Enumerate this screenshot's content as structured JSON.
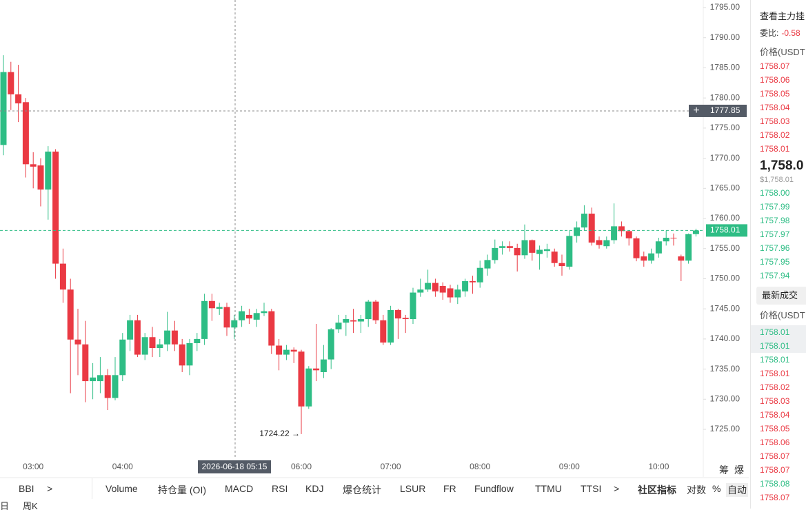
{
  "chart_data": {
    "type": "candlestick",
    "categories": [
      null,
      null,
      null,
      null,
      "03:00",
      null,
      null,
      null,
      null,
      null,
      null,
      null,
      null,
      null,
      null,
      null,
      "04:00",
      null,
      null,
      null,
      null,
      null,
      null,
      null,
      null,
      null,
      null,
      null,
      null,
      null,
      null,
      null,
      null,
      null,
      null,
      null,
      null,
      null,
      null,
      null,
      "06:00",
      null,
      null,
      null,
      null,
      null,
      null,
      null,
      null,
      null,
      null,
      null,
      "07:00",
      null,
      null,
      null,
      null,
      null,
      null,
      null,
      null,
      null,
      null,
      null,
      "08:00",
      null,
      null,
      null,
      null,
      null,
      null,
      null,
      null,
      null,
      null,
      null,
      "09:00",
      null,
      null,
      null,
      null,
      null,
      null,
      null,
      null,
      null,
      null,
      null,
      "10:00",
      null,
      null,
      null,
      null,
      null
    ],
    "open": [
      1772.2,
      1784.3,
      1780.6,
      1779.3,
      1769.0,
      1768.8,
      1764.8,
      1771.1,
      1752.5,
      1748.2,
      1739.9,
      1739.1,
      1733.0,
      1733.0,
      1734.0,
      1730.2,
      1734.0,
      1739.9,
      1743.1,
      1737.4,
      1740.3,
      1738.5,
      1739.1,
      1741.4,
      1739.1,
      1735.6,
      1739.3,
      1740.0,
      1746.3,
      1745.0,
      1745.3,
      1741.9,
      1743.1,
      1744.0,
      1743.2,
      1744.3,
      1744.6,
      1738.9,
      1737.4,
      1738.2,
      1737.9,
      1728.8,
      1735.1,
      1734.5,
      1736.6,
      1741.6,
      1742.7,
      1743.1,
      1742.9,
      1743.3,
      1746.2,
      1743.1,
      1739.4,
      1744.8,
      1743.5,
      1743.3,
      1747.7,
      1748.2,
      1749.3,
      1748.8,
      1748.4,
      1746.9,
      1747.9,
      1749.6,
      1749.4,
      1751.7,
      1753.1,
      1755.1,
      1755.4,
      1755.1,
      1753.9,
      1756.4,
      1754.1,
      1754.6,
      1754.5,
      1752.6,
      1752.0,
      1757.1,
      1758.5,
      1760.8,
      1756.4,
      1755.4,
      1756.4,
      1758.7,
      1757.9,
      1756.7,
      1753.7,
      1753.0,
      1754.2,
      1756.2,
      1756.8,
      1753.7,
      1753.0,
      1757.4
    ],
    "high": [
      1787.1,
      1786,
      1785.5,
      1780,
      1771,
      1770,
      1772,
      1771.5,
      1755,
      1750,
      1745,
      1743,
      1736,
      1737,
      1735,
      1737,
      1741,
      1744,
      1744,
      1741,
      1742,
      1740,
      1744.5,
      1743,
      1740,
      1740,
      1741,
      1747.5,
      1747.5,
      1746,
      1746,
      1744,
      1745.5,
      1745,
      1745,
      1746,
      1745,
      1740,
      1739,
      1738.6,
      1738.2,
      1735.5,
      1742.5,
      1739,
      1741.8,
      1744,
      1744,
      1745,
      1744,
      1746.5,
      1746.5,
      1744,
      1745.5,
      1745,
      1744,
      1748.5,
      1750,
      1751.5,
      1750,
      1749.4,
      1749,
      1749,
      1750,
      1750.5,
      1753,
      1754,
      1756.5,
      1756.2,
      1756.2,
      1755.8,
      1759,
      1756.5,
      1755.5,
      1755.8,
      1755,
      1754,
      1758,
      1759.5,
      1762.2,
      1761.8,
      1757,
      1757,
      1762.5,
      1759.5,
      1758,
      1757,
      1754.5,
      1755,
      1756.8,
      1758,
      1757.5,
      1754,
      1757.5,
      1758.3
    ],
    "low": [
      1770.5,
      1778,
      1776,
      1766.8,
      1765,
      1762,
      1759.8,
      1750,
      1746,
      1731,
      1734,
      1729.5,
      1730,
      1731,
      1728.2,
      1729.8,
      1733,
      1738,
      1737,
      1736.5,
      1737,
      1737,
      1738,
      1738,
      1734.5,
      1734,
      1738,
      1739,
      1743,
      1744,
      1740.5,
      1740,
      1742,
      1742.5,
      1742,
      1743.8,
      1737.5,
      1734.8,
      1736.5,
      1736,
      1724.22,
      1728.4,
      1733,
      1733.5,
      1735,
      1741,
      1740.5,
      1741,
      1741,
      1742,
      1742.5,
      1739,
      1739,
      1740,
      1741,
      1742.5,
      1747,
      1747.8,
      1747,
      1746.5,
      1746,
      1745.8,
      1747,
      1747.5,
      1748.5,
      1750.5,
      1752.5,
      1754,
      1754.5,
      1751.2,
      1753.3,
      1753,
      1751.5,
      1753.5,
      1752,
      1750.5,
      1751.5,
      1756,
      1758,
      1755.5,
      1755,
      1755,
      1755.8,
      1757,
      1755.5,
      1752.9,
      1752,
      1752.5,
      1753.5,
      1755.5,
      1755.5,
      1749.6,
      1752.5,
      1757
    ],
    "close": [
      1784.3,
      1780.6,
      1779.1,
      1769.0,
      1768.6,
      1764.8,
      1771.1,
      1752.5,
      1748.2,
      1739.9,
      1739.1,
      1733.0,
      1733.6,
      1734.0,
      1730.2,
      1734.0,
      1739.9,
      1743.1,
      1737.4,
      1740.3,
      1738.5,
      1739.1,
      1741.4,
      1739.1,
      1735.6,
      1739.3,
      1740.0,
      1746.3,
      1745.1,
      1745.3,
      1741.9,
      1743.1,
      1744.6,
      1743.4,
      1744.3,
      1744.6,
      1738.9,
      1737.4,
      1738.2,
      1737.9,
      1728.8,
      1735.1,
      1734.8,
      1736.6,
      1741.6,
      1742.7,
      1743.3,
      1742.9,
      1743.3,
      1746.2,
      1743.1,
      1739.4,
      1744.8,
      1743.4,
      1743.3,
      1747.7,
      1748.2,
      1749.3,
      1747.9,
      1747.7,
      1746.9,
      1748.2,
      1749.6,
      1749.4,
      1751.8,
      1753.1,
      1755.1,
      1755.4,
      1755.1,
      1753.9,
      1756.4,
      1754.3,
      1754.8,
      1754.9,
      1752.6,
      1752.1,
      1757.1,
      1758.5,
      1760.8,
      1756.0,
      1755.6,
      1756.4,
      1758.7,
      1757.9,
      1756.7,
      1753.4,
      1753.0,
      1754.2,
      1756.2,
      1756.8,
      1756.7,
      1753.0,
      1757.4,
      1758.01
    ],
    "up_color": "#2ebd85",
    "down_color": "#ea3943",
    "ylim": [
      1717.34,
      1796.26
    ],
    "yticks": [
      {
        "value": 1725,
        "label": "1725.00"
      },
      {
        "value": 1730,
        "label": "1730.00"
      },
      {
        "value": 1735,
        "label": "1735.00"
      },
      {
        "value": 1740,
        "label": "1740.00"
      },
      {
        "value": 1745,
        "label": "1745.00"
      },
      {
        "value": 1750,
        "label": "1750.00"
      },
      {
        "value": 1755,
        "label": "1755.00"
      },
      {
        "value": 1760,
        "label": "1760.00"
      },
      {
        "value": 1765,
        "label": "1765.00"
      },
      {
        "value": 1770,
        "label": "1770.00"
      },
      {
        "value": 1775,
        "label": "1775.00"
      },
      {
        "value": 1780,
        "label": "1780.00"
      },
      {
        "value": 1785,
        "label": "1785.00"
      },
      {
        "value": 1790,
        "label": "1790.00"
      },
      {
        "value": 1795,
        "label": "1795.00"
      }
    ],
    "last_price": 1758.01,
    "crosshair_price": 1777.85,
    "crosshair_time": "2026-06-18 05:15",
    "low_annotation": "1724.22 →"
  },
  "side_panel": {
    "title": "查看主力挂",
    "ratio_label": "委比:",
    "ratio_value": "-0.58",
    "price_header": "价格(USDT",
    "asks": [
      "1758.07",
      "1758.06",
      "1758.05",
      "1758.04",
      "1758.03",
      "1758.02",
      "1758.01"
    ],
    "mid_price": "1,758.0",
    "mid_usd": "$1,758.01",
    "bids": [
      "1758.00",
      "1757.99",
      "1757.98",
      "1757.97",
      "1757.96",
      "1757.95",
      "1757.94"
    ],
    "trades_tab": "最新成交",
    "trades_header": "价格(USDT",
    "trades": [
      {
        "price": "1758.01",
        "side": "buy"
      },
      {
        "price": "1758.01",
        "side": "buy"
      },
      {
        "price": "1758.01",
        "side": "buy"
      },
      {
        "price": "1758.01",
        "side": "sell"
      },
      {
        "price": "1758.02",
        "side": "sell"
      },
      {
        "price": "1758.03",
        "side": "sell"
      },
      {
        "price": "1758.04",
        "side": "sell"
      },
      {
        "price": "1758.05",
        "side": "sell"
      },
      {
        "price": "1758.06",
        "side": "sell"
      },
      {
        "price": "1758.07",
        "side": "sell"
      },
      {
        "price": "1758.07",
        "side": "sell"
      },
      {
        "price": "1758.08",
        "side": "buy"
      },
      {
        "price": "1758.07",
        "side": "sell"
      }
    ]
  },
  "toolbar": {
    "left": [
      "BBI",
      ">"
    ],
    "indicators": [
      "Volume",
      "持仓量 (OI)",
      "MACD",
      "RSI",
      "KDJ",
      "爆仓统计",
      "LSUR",
      "FR",
      "Fundflow",
      "TTMU",
      "TTSI",
      ">"
    ],
    "community": "社区指标",
    "options": [
      "对数",
      "%",
      "自动"
    ],
    "corner": [
      "筹",
      "爆"
    ],
    "bottom": [
      "日",
      "周K"
    ]
  }
}
